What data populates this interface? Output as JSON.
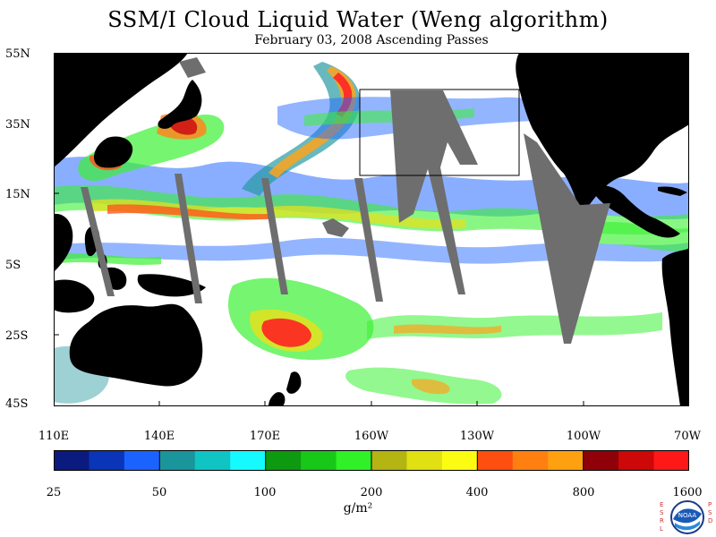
{
  "title": "SSM/I Cloud Liquid Water (Weng algorithm)",
  "subtitle": "February 03, 2008  Ascending Passes",
  "lat_labels": [
    "55N",
    "35N",
    "15N",
    "5S",
    "25S",
    "45S"
  ],
  "lon_labels": [
    "110E",
    "140E",
    "170E",
    "160W",
    "130W",
    "100W",
    "70W"
  ],
  "colorbar": {
    "colors": [
      "#0b1a7e",
      "#0a35b8",
      "#1b63ff",
      "#1a959c",
      "#10c4c4",
      "#14faff",
      "#0e9a10",
      "#18c818",
      "#30f028",
      "#b4b412",
      "#e0e012",
      "#fcfc12",
      "#ff4f10",
      "#ff8010",
      "#ffa010",
      "#900008",
      "#cc0808",
      "#ff1818"
    ],
    "tick_labels": [
      "25",
      "50",
      "100",
      "200",
      "400",
      "800",
      "1600"
    ],
    "units": "g/m²"
  },
  "logo": {
    "text": "NOAA",
    "left": "ESRL",
    "right": "PSD"
  },
  "map": {
    "land_color": "#000000",
    "missing_color": "#6e6e6e",
    "background": "#ffffff"
  }
}
